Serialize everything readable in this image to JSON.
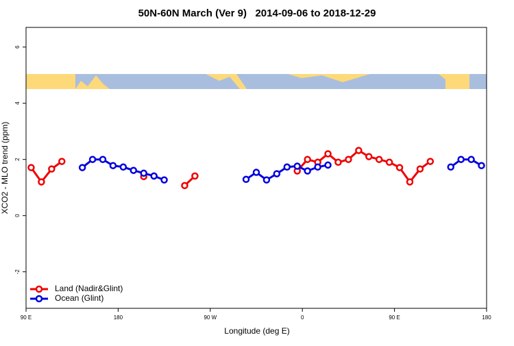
{
  "chart_data": {
    "type": "line",
    "title": "50N-60N March (Ver 9)   2014-09-06 to 2018-12-29",
    "x_label": "Longitude (deg E)",
    "y_label": "XCO2 - MLO trend (ppm)",
    "x": [
      95,
      105,
      115,
      125,
      135,
      145,
      155,
      165,
      175,
      185,
      195,
      205,
      215,
      225,
      235,
      245,
      255,
      265,
      275,
      285,
      295,
      305,
      315,
      325,
      335,
      345,
      355,
      365,
      375,
      385,
      395,
      405,
      415,
      425,
      435,
      445,
      455,
      465,
      475,
      485,
      495,
      505,
      515,
      525,
      535
    ],
    "series": [
      {
        "name": "Land (Nadir&Glint)",
        "color": "#ee0000",
        "values": [
          1.71,
          1.2,
          1.66,
          1.93,
          null,
          null,
          null,
          null,
          null,
          null,
          null,
          1.39,
          null,
          null,
          null,
          1.07,
          1.41,
          null,
          null,
          null,
          null,
          null,
          null,
          null,
          null,
          null,
          1.59,
          2.0,
          1.9,
          2.2,
          1.9,
          2.0,
          2.32,
          2.1,
          2.0,
          1.9,
          1.71,
          1.2,
          1.66,
          1.93,
          null,
          null,
          null,
          null,
          null
        ]
      },
      {
        "name": "Ocean (Glint)",
        "color": "#0000dd",
        "values": [
          null,
          null,
          null,
          null,
          null,
          1.71,
          2.0,
          2.0,
          1.78,
          1.73,
          1.61,
          1.51,
          1.41,
          1.27,
          null,
          null,
          null,
          null,
          null,
          null,
          null,
          1.29,
          1.54,
          1.27,
          1.49,
          1.73,
          1.76,
          1.59,
          1.73,
          1.8,
          null,
          null,
          null,
          null,
          null,
          null,
          null,
          null,
          null,
          null,
          null,
          1.73,
          2.0,
          2.0,
          1.78
        ]
      }
    ],
    "xlim": [
      90,
      540
    ],
    "ylim": [
      -3.3,
      6.7
    ],
    "xticks": [
      {
        "value": 90,
        "label": "90 E"
      },
      180,
      {
        "value": 270,
        "label": "90 W"
      },
      {
        "value": 360,
        "label": "0"
      },
      {
        "value": 450,
        "label": "90 E"
      },
      {
        "value": 540,
        "label": "180"
      }
    ],
    "yticks": [
      -2,
      0,
      2,
      4,
      6
    ],
    "legend": "bottom-left"
  }
}
